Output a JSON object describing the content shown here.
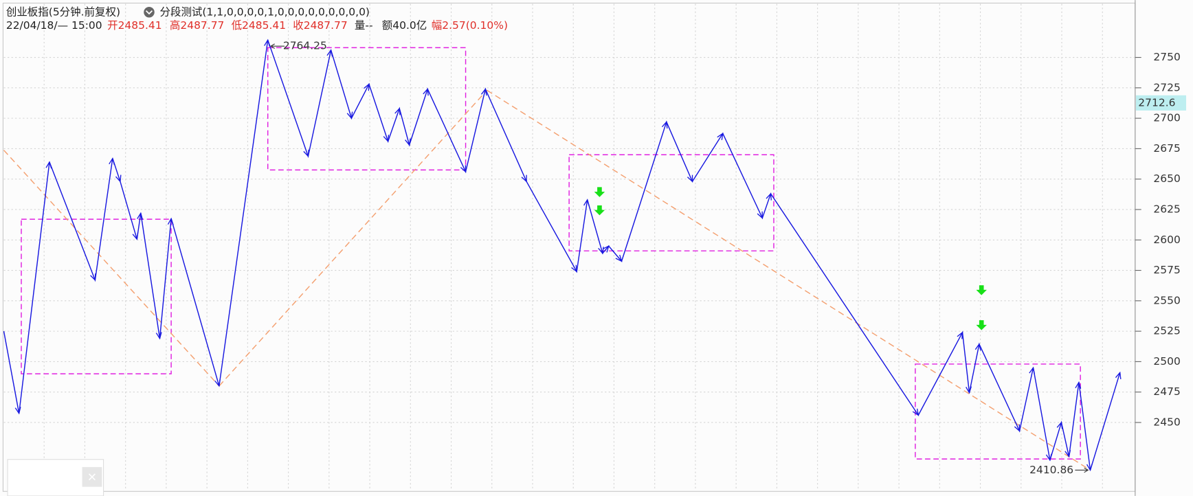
{
  "header": {
    "title": "创业板指(5分钟.前复权)",
    "indicator": "分段测试(1,1,0,0,0,0,1,0,0,0,0,0,0,0,0,0)",
    "time": "22/04/18/— 15:00",
    "open": "开2485.41",
    "high": "高2487.77",
    "low": "低2485.41",
    "close": "收2487.77",
    "volume": "量--",
    "amount": "额40.0亿",
    "change": "幅2.57(0.10%)"
  },
  "chart_data": {
    "type": "line",
    "xlim": [
      0,
      743
    ],
    "ylim": [
      2394,
      2794
    ],
    "yticks": [
      2450,
      2475,
      2500,
      2525,
      2550,
      2575,
      2600,
      2625,
      2650,
      2675,
      2700,
      2725,
      2750
    ],
    "grid": true,
    "current_price": 2712.6,
    "series": [
      {
        "color": "#1818e0",
        "x": [
          0,
          10,
          30,
          60,
          71.5,
          76.5,
          87.5,
          90,
          102.5,
          110,
          141.5,
          173.5,
          200,
          215,
          228.5,
          240,
          252.5,
          260,
          266.5,
          278.5,
          303.5,
          316.5,
          343.5,
          376.5,
          383.5,
          393.5,
          397.5,
          406,
          435.5,
          452.5,
          472.5,
          498.5,
          504,
          601,
          630,
          634.5,
          641,
          667.5,
          676.5,
          687.5,
          695,
          700,
          706.5,
          714,
          733.5
        ],
        "values": [
          2525,
          2457.5,
          2664,
          2567,
          2667,
          2648,
          2600.6,
          2622,
          2519,
          2617.5,
          2480,
          2764.25,
          2668.75,
          2756,
          2700,
          2728,
          2681,
          2708,
          2678,
          2724,
          2656,
          2724,
          2648,
          2574,
          2633,
          2589,
          2595,
          2582.5,
          2697,
          2648,
          2687.5,
          2618,
          2638,
          2456,
          2524,
          2474.4,
          2514.4,
          2443,
          2495,
          2419,
          2450,
          2422,
          2483,
          2410.86,
          2491
        ]
      }
    ],
    "trend_lines": {
      "color": "#f4a070",
      "segments": [
        {
          "x": [
            0,
            141.5
          ],
          "values": [
            2673.75,
            2480
          ]
        },
        {
          "x": [
            141.5,
            317.5
          ],
          "values": [
            2480,
            2723
          ]
        },
        {
          "x": [
            317.5,
            714
          ],
          "values": [
            2723,
            2410.86
          ]
        }
      ]
    },
    "boxes": {
      "color": "#e020e0",
      "items": [
        {
          "x": [
            11.5,
            110
          ],
          "values": [
            2617,
            2490
          ]
        },
        {
          "x": [
            173.5,
            303.5
          ],
          "values": [
            2758,
            2657.5
          ]
        },
        {
          "x": [
            371.5,
            506
          ],
          "values": [
            2670,
            2591
          ]
        },
        {
          "x": [
            599,
            707.5
          ],
          "values": [
            2498,
            2420
          ]
        }
      ]
    },
    "annotations": [
      {
        "x": 173.5,
        "value": 2764.25
      },
      {
        "x": 714,
        "value": 2410.86
      }
    ]
  }
}
